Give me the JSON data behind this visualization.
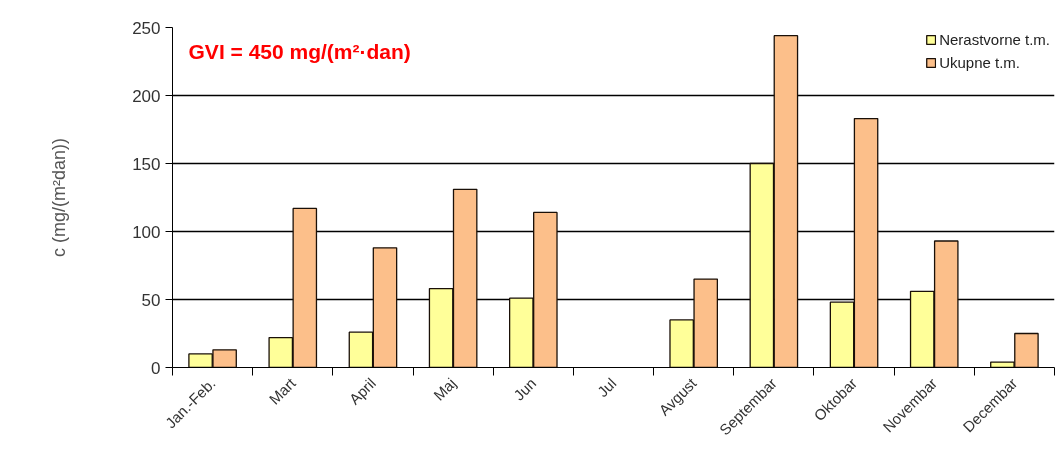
{
  "chart_data": {
    "type": "bar",
    "categories": [
      "Jan.-Feb.",
      "Mart",
      "April",
      "Maj",
      "Jun",
      "Jul",
      "Avgust",
      "Septembar",
      "Oktobar",
      "Novembar",
      "Decembar"
    ],
    "series": [
      {
        "name": "Nerastvorne t.m.",
        "color": "#ffff99",
        "values": [
          10,
          22,
          26,
          58,
          51,
          null,
          35,
          150,
          48,
          56,
          4
        ]
      },
      {
        "name": "Ukupne t.m.",
        "color": "#fcbf8a",
        "values": [
          13,
          117,
          88,
          131,
          114,
          null,
          65,
          244,
          183,
          93,
          25
        ]
      }
    ],
    "ylabel": "c (mg/(m²dan))",
    "ylim": [
      0,
      250
    ],
    "yticks": [
      0,
      50,
      100,
      150,
      200,
      250
    ],
    "grid": "y",
    "legend": "top right",
    "annotations": [
      "GVI = 450 mg/(m²·dan)"
    ]
  }
}
